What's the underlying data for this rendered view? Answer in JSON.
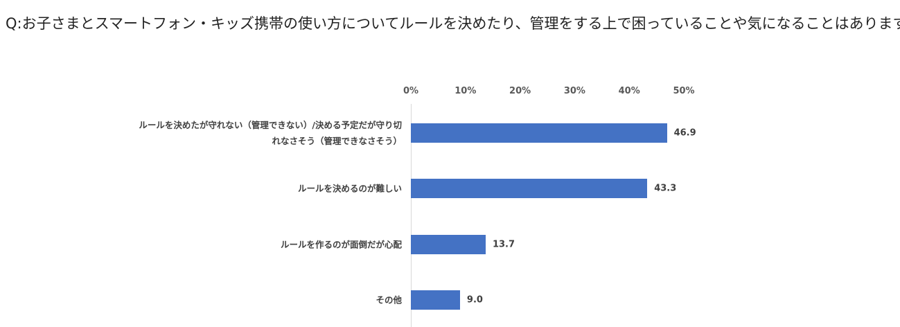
{
  "chart_data": {
    "type": "bar",
    "orientation": "horizontal",
    "title": "Q:お子さまとスマートフォン・キッズ携帯の使い方についてルールを決めたり、管理をする上で困っていることや気になることはありますか？",
    "categories": [
      "ルールを決めたが守れない（管理できない）/決める予定だが守り切れなさそう（管理できなさそう）",
      "ルールを決めるのが難しい",
      "ルールを作るのが面倒だが心配",
      "その他"
    ],
    "values": [
      46.9,
      43.3,
      13.7,
      9.0
    ],
    "value_labels": [
      "46.9",
      "43.3",
      "13.7",
      "9.0"
    ],
    "color": "#4472c4",
    "xlim": [
      0,
      50
    ],
    "xticks": [
      {
        "value": 0,
        "label": "0%"
      },
      {
        "value": 10,
        "label": "10%"
      },
      {
        "value": 20,
        "label": "20%"
      },
      {
        "value": 30,
        "label": "30%"
      },
      {
        "value": 40,
        "label": "40%"
      },
      {
        "value": 50,
        "label": "50%"
      }
    ]
  }
}
